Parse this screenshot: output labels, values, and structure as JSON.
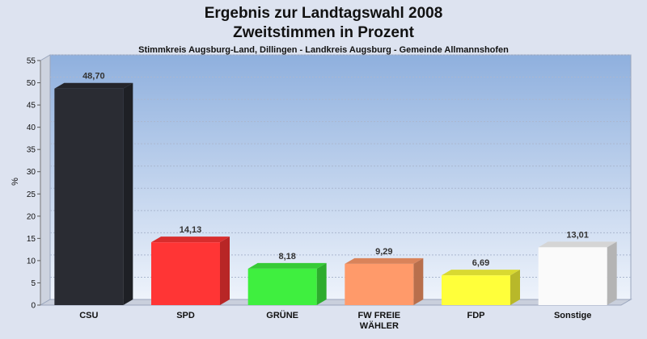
{
  "chart_data": {
    "type": "bar",
    "title": [
      "Ergebnis zur Landtagswahl 2008",
      "Zweitstimmen in Prozent"
    ],
    "subtitle": "Stimmkreis Augsburg-Land, Dillingen - Landkreis Augsburg - Gemeinde Allmannshofen",
    "ylabel": "%",
    "ylim": [
      0,
      55
    ],
    "yticks": [
      0,
      5,
      10,
      15,
      20,
      25,
      30,
      35,
      40,
      45,
      50,
      55
    ],
    "grid": true,
    "categories": [
      [
        "CSU"
      ],
      [
        "SPD"
      ],
      [
        "GRÜNE"
      ],
      [
        "FW FREIE",
        "WÄHLER"
      ],
      [
        "FDP"
      ],
      [
        "Sonstige"
      ]
    ],
    "values": [
      48.7,
      14.13,
      8.18,
      9.29,
      6.69,
      13.01
    ],
    "value_labels": [
      "48,70",
      "14,13",
      "8,18",
      "9,29",
      "6,69",
      "13,01"
    ],
    "colors": [
      "#2a2c33",
      "#ff3535",
      "#3fef3f",
      "#ff9a6a",
      "#ffff3a",
      "#fafafa"
    ]
  }
}
